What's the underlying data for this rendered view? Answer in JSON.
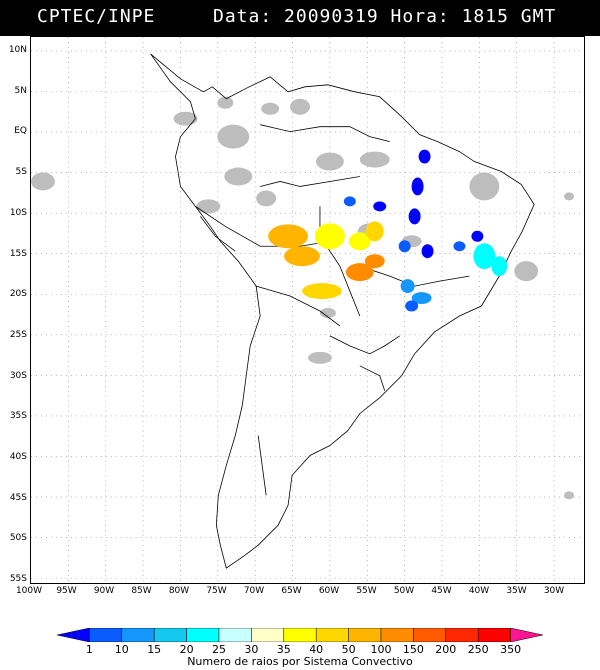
{
  "header": {
    "title": "CPTEC/INPE",
    "date_time": "Data: 20090319 Hora: 1815 GMT"
  },
  "map": {
    "lat_labels": [
      "10N",
      "5N",
      "EQ",
      "5S",
      "10S",
      "15S",
      "20S",
      "25S",
      "30S",
      "35S",
      "40S",
      "45S",
      "50S",
      "55S"
    ],
    "lon_labels": [
      "100W",
      "95W",
      "90W",
      "85W",
      "80W",
      "75W",
      "70W",
      "65W",
      "60W",
      "55W",
      "50W",
      "45W",
      "40W",
      "35W",
      "30W"
    ],
    "colors": {
      "land_outline": "#000000",
      "cloud_gray": "#bdbdbd",
      "grid_dots": "#888888"
    }
  },
  "colorbar": {
    "caption": "Numero de raios por Sistema Convectivo",
    "labels": [
      "1",
      "10",
      "15",
      "20",
      "25",
      "30",
      "35",
      "40",
      "50",
      "100",
      "150",
      "200",
      "250",
      "350"
    ],
    "colors": [
      "#0000ff",
      "#0a5cff",
      "#1496ff",
      "#14c8f0",
      "#00ffff",
      "#c8ffff",
      "#ffffc8",
      "#ffff00",
      "#ffd700",
      "#ffb400",
      "#ff8c00",
      "#ff5a00",
      "#ff2800",
      "#ff0000",
      "#ff1493"
    ]
  }
}
